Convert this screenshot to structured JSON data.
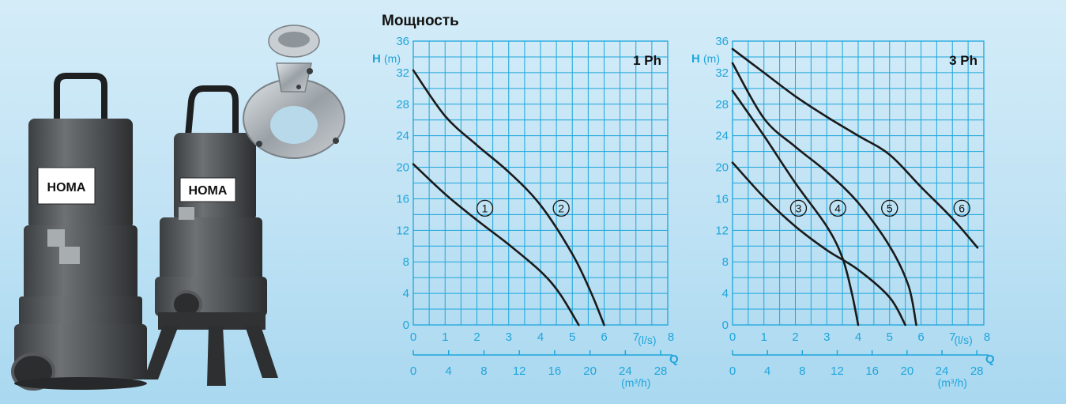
{
  "title": "Мощность",
  "chart_data": [
    {
      "type": "line",
      "panel_label": "1 Ph",
      "ylabel_letter": "H",
      "ylabel_unit": "(m)",
      "ylim": [
        0,
        36
      ],
      "yticks": [
        0,
        4,
        8,
        12,
        16,
        20,
        24,
        28,
        32,
        36
      ],
      "xlim": [
        0,
        8
      ],
      "xticks": [
        0,
        1,
        2,
        3,
        4,
        5,
        6,
        7,
        8
      ],
      "xunit": "(l/s)",
      "q_letter": "Q",
      "secondary_xticks": [
        0,
        4,
        8,
        12,
        16,
        20,
        24,
        28
      ],
      "secondary_xunit": "(m³/h)",
      "grid": true,
      "series": [
        {
          "name": "1",
          "points": [
            [
              0,
              20.4
            ],
            [
              1,
              16.6
            ],
            [
              2,
              13.3
            ],
            [
              3,
              10.2
            ],
            [
              4,
              6.8
            ],
            [
              4.6,
              4.0
            ],
            [
              5.2,
              0
            ]
          ]
        },
        {
          "name": "2",
          "points": [
            [
              0,
              32.3
            ],
            [
              1,
              26.5
            ],
            [
              2,
              22.8
            ],
            [
              3,
              19.4
            ],
            [
              4,
              15.2
            ],
            [
              5,
              9.0
            ],
            [
              5.6,
              4.0
            ],
            [
              6.0,
              0
            ]
          ]
        }
      ],
      "series_labels": [
        {
          "text": "1",
          "x": 2.25,
          "y": 14.8
        },
        {
          "text": "2",
          "x": 4.65,
          "y": 14.8
        }
      ]
    },
    {
      "type": "line",
      "panel_label": "3 Ph",
      "ylabel_letter": "H",
      "ylabel_unit": "(m)",
      "ylim": [
        0,
        36
      ],
      "yticks": [
        0,
        4,
        8,
        12,
        16,
        20,
        24,
        28,
        32,
        36
      ],
      "xlim": [
        0,
        8
      ],
      "xticks": [
        0,
        1,
        2,
        3,
        4,
        5,
        6,
        7,
        8
      ],
      "xunit": "(l/s)",
      "q_letter": "Q",
      "secondary_xticks": [
        0,
        4,
        8,
        12,
        16,
        20,
        24,
        28
      ],
      "secondary_xunit": "(m³/h)",
      "grid": true,
      "series": [
        {
          "name": "3",
          "points": [
            [
              0,
              20.6
            ],
            [
              1,
              16.2
            ],
            [
              2,
              12.5
            ],
            [
              3,
              9.5
            ],
            [
              4,
              7.0
            ],
            [
              5,
              3.5
            ],
            [
              5.5,
              0
            ]
          ]
        },
        {
          "name": "4",
          "points": [
            [
              0,
              29.7
            ],
            [
              1,
              24.0
            ],
            [
              2,
              18.0
            ],
            [
              3,
              12.5
            ],
            [
              3.5,
              8.5
            ],
            [
              3.8,
              4.0
            ],
            [
              4.0,
              0
            ]
          ]
        },
        {
          "name": "5",
          "points": [
            [
              0,
              33.2
            ],
            [
              1,
              26.2
            ],
            [
              2,
              22.6
            ],
            [
              3,
              19.4
            ],
            [
              4,
              15.5
            ],
            [
              5,
              10.0
            ],
            [
              5.6,
              5.0
            ],
            [
              5.85,
              0
            ]
          ]
        },
        {
          "name": "6",
          "points": [
            [
              0,
              35.0
            ],
            [
              1,
              32.0
            ],
            [
              2,
              29.0
            ],
            [
              3,
              26.4
            ],
            [
              4,
              24.0
            ],
            [
              5,
              21.6
            ],
            [
              6,
              17.5
            ],
            [
              7,
              13.5
            ],
            [
              7.8,
              9.8
            ]
          ]
        }
      ],
      "series_labels": [
        {
          "text": "3",
          "x": 2.1,
          "y": 14.8
        },
        {
          "text": "4",
          "x": 3.35,
          "y": 14.8
        },
        {
          "text": "5",
          "x": 5.0,
          "y": 14.8
        },
        {
          "text": "6",
          "x": 7.3,
          "y": 14.8
        }
      ]
    }
  ],
  "product_images": {
    "left_pump_logo": "HOMA",
    "right_pump_logo": "HOMA",
    "icons": [
      "submersible-pump-illustration",
      "pump-with-stand-illustration",
      "coupling-flange-illustration"
    ]
  }
}
